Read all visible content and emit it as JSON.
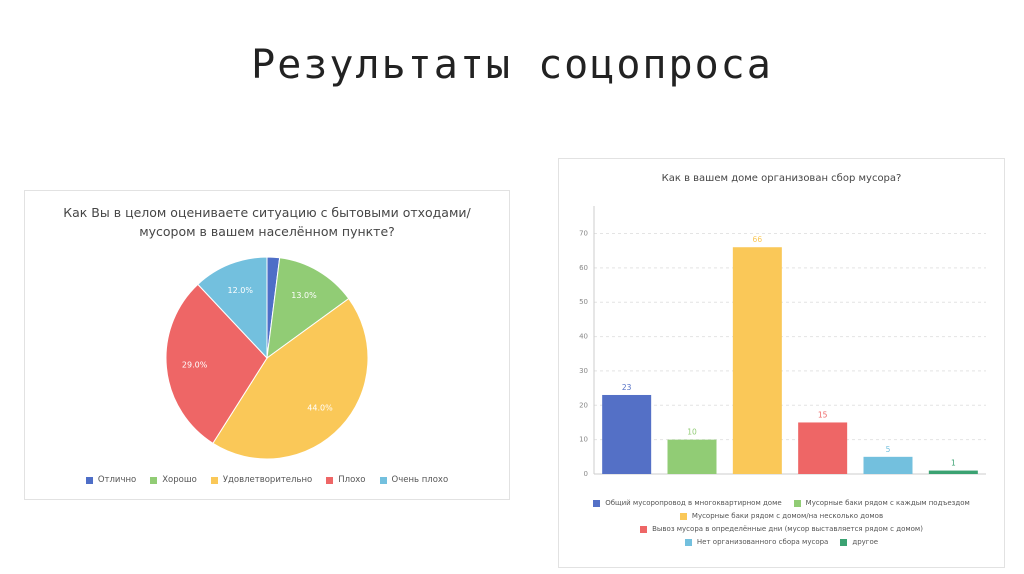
{
  "title": "Результаты соцопроса",
  "chart_data": [
    {
      "type": "pie",
      "title": "Как Вы в целом оцениваете ситуацию с бытовыми отходами/мусором в вашем населённом пункте?",
      "categories": [
        "Отлично",
        "Хорошо",
        "Удовлетворительно",
        "Плохо",
        "Очень плохо"
      ],
      "values": [
        2,
        13,
        44,
        29,
        12
      ],
      "value_labels": [
        null,
        "13.0%",
        "44.0%",
        "29.0%",
        "12.0%"
      ],
      "colors": [
        "#4e6ec7",
        "#91cc75",
        "#fac858",
        "#ee6666",
        "#73c0de"
      ],
      "legend": "bottom"
    },
    {
      "type": "bar",
      "title": "Как в вашем доме организован сбор мусора?",
      "categories": [
        "Общий мусоропровод в многоквартирном доме",
        "Мусорные баки рядом с каждым подъездом",
        "Мусорные баки рядом с домом/на несколько домов",
        "Вывоз мусора в определённые дни (мусор выставляется рядом с домом)",
        "Нет организованного сбора мусора",
        "другое"
      ],
      "values": [
        23,
        10,
        66,
        15,
        5,
        1
      ],
      "colors": [
        "#5470c6",
        "#91cc75",
        "#fac858",
        "#ee6666",
        "#73c0de",
        "#3ba272"
      ],
      "ylim": [
        0,
        78
      ],
      "yticks": [
        0,
        10,
        20,
        30,
        40,
        50,
        60,
        70
      ],
      "grid": true,
      "legend": "bottom"
    }
  ]
}
